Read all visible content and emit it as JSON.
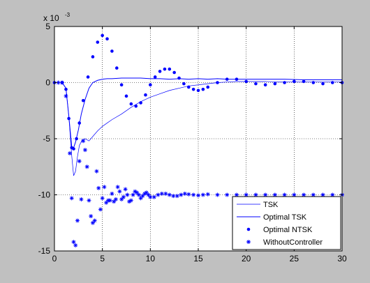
{
  "chart_data": {
    "type": "line",
    "title": "",
    "xlabel": "",
    "ylabel": "",
    "xlim": [
      0,
      30
    ],
    "ylim": [
      -15,
      5
    ],
    "y_multiplier_label": "x 10",
    "y_multiplier_exponent": "-3",
    "xticks": [
      "0",
      "5",
      "10",
      "15",
      "20",
      "25",
      "30"
    ],
    "yticks": [
      "5",
      "0",
      "-5",
      "-10",
      "-15"
    ],
    "grid": true,
    "legend_position": "bottom-right",
    "series": [
      {
        "name": "TSK",
        "style": "thin-line",
        "x": [
          0,
          0.8,
          1.2,
          1.5,
          1.8,
          2.0,
          2.2,
          2.4,
          2.6,
          2.9,
          3.2,
          3.6,
          4.0,
          4.5,
          5.0,
          5.5,
          6.0,
          7.0,
          8.0,
          9.0,
          10.0,
          11.0,
          12.0,
          13.0,
          14.0,
          15.0,
          16.0,
          17.0,
          18.0,
          19.0,
          20.0,
          22.0,
          24.0,
          26.0,
          28.0,
          30.0
        ],
        "y": [
          0,
          0,
          -0.5,
          -3.0,
          -6.5,
          -8.3,
          -7.9,
          -6.6,
          -5.6,
          -5.1,
          -5.0,
          -5.2,
          -4.8,
          -4.3,
          -3.9,
          -3.6,
          -3.3,
          -2.8,
          -2.2,
          -1.7,
          -1.3,
          -1.0,
          -0.7,
          -0.5,
          -0.3,
          -0.2,
          -0.1,
          0.0,
          0.05,
          0.1,
          0.1,
          0.1,
          0.05,
          0.05,
          0.05,
          0.05
        ]
      },
      {
        "name": "Optimal TSK",
        "style": "line",
        "x": [
          0,
          0.8,
          1.2,
          1.5,
          1.8,
          2.0,
          2.2,
          2.5,
          2.8,
          3.2,
          3.6,
          4.0,
          4.5,
          5.0,
          5.5,
          6.0,
          7.0,
          8.0,
          9.0,
          10.0,
          11.0,
          12.0,
          13.0,
          14.0,
          15.0,
          16.0,
          17.0,
          18.0,
          19.0,
          20.0,
          22.0,
          24.0,
          26.0,
          28.0,
          30.0
        ],
        "y": [
          0,
          0,
          -0.5,
          -3.0,
          -5.7,
          -5.8,
          -5.3,
          -4.2,
          -2.8,
          -1.5,
          -0.5,
          0.0,
          0.2,
          0.3,
          0.35,
          0.35,
          0.4,
          0.4,
          0.4,
          0.35,
          0.35,
          0.3,
          0.35,
          0.3,
          0.35,
          0.3,
          0.35,
          0.3,
          0.3,
          0.3,
          0.3,
          0.3,
          0.25,
          0.25,
          0.25
        ]
      },
      {
        "name": "Optimal NTSK",
        "style": "dots",
        "x": [
          0,
          0.8,
          1.2,
          1.5,
          1.8,
          2.0,
          2.3,
          2.6,
          3.0,
          3.5,
          4.0,
          4.5,
          5.0,
          5.5,
          6.0,
          6.5,
          7.0,
          7.5,
          8.0,
          8.5,
          9.0,
          9.5,
          10.0,
          10.5,
          11.0,
          11.5,
          12.0,
          12.5,
          13.0,
          13.5,
          14.0,
          14.5,
          15.0,
          15.5,
          16.0,
          17.0,
          18.0,
          19.0,
          20.0,
          21.0,
          22.0,
          23.0,
          24.0,
          25.0,
          26.0,
          27.0,
          28.0,
          29.0,
          30.0
        ],
        "y": [
          0,
          0,
          -0.6,
          -3.2,
          -5.8,
          -5.9,
          -5.0,
          -3.6,
          -1.6,
          0.5,
          2.3,
          3.6,
          4.2,
          3.9,
          2.8,
          1.3,
          -0.2,
          -1.2,
          -1.9,
          -2.1,
          -1.8,
          -1.1,
          -0.2,
          0.5,
          1.0,
          1.2,
          1.2,
          0.9,
          0.4,
          -0.1,
          -0.4,
          -0.6,
          -0.7,
          -0.6,
          -0.4,
          0.0,
          0.3,
          0.3,
          0.1,
          -0.1,
          -0.2,
          -0.1,
          0.0,
          0.1,
          0.1,
          0.0,
          -0.1,
          0.0,
          0.0
        ]
      },
      {
        "name": "WithoutController",
        "style": "stars",
        "x": [
          0.4,
          0.8,
          1.2,
          1.6,
          1.8,
          2.0,
          2.2,
          2.4,
          2.6,
          2.8,
          3.0,
          3.2,
          3.4,
          3.6,
          3.8,
          4.0,
          4.2,
          4.4,
          4.6,
          4.8,
          5.0,
          5.2,
          5.4,
          5.6,
          5.8,
          6.0,
          6.2,
          6.4,
          6.6,
          6.8,
          7.0,
          7.2,
          7.4,
          7.6,
          7.8,
          8.0,
          8.2,
          8.4,
          8.6,
          8.8,
          9.0,
          9.2,
          9.4,
          9.6,
          9.8,
          10.0,
          10.4,
          10.8,
          11.2,
          11.6,
          12.0,
          12.4,
          12.8,
          13.2,
          13.6,
          14.0,
          14.5,
          15.0,
          15.5,
          16.0,
          17.0,
          18.0,
          19.0,
          20.0,
          21.0,
          22.0,
          23.0,
          24.0,
          25.0,
          26.0,
          27.0,
          28.0,
          29.0,
          30.0
        ],
        "y": [
          0,
          0,
          -1.2,
          -6.3,
          -10.3,
          -14.2,
          -14.5,
          -12.3,
          -7.0,
          -10.4,
          -5.2,
          -6.0,
          -7.5,
          -10.5,
          -11.9,
          -12.5,
          -12.3,
          -7.9,
          -9.4,
          -11.3,
          -10.3,
          -9.3,
          -10.7,
          -10.5,
          -10.5,
          -9.9,
          -10.6,
          -10.4,
          -9.3,
          -9.7,
          -10.4,
          -10.2,
          -9.5,
          -10.0,
          -10.6,
          -10.5,
          -10.0,
          -9.7,
          -9.8,
          -10.0,
          -10.3,
          -10.1,
          -9.9,
          -9.8,
          -10.0,
          -10.2,
          -10.2,
          -10.0,
          -9.9,
          -9.9,
          -10.0,
          -10.1,
          -10.1,
          -10.0,
          -9.9,
          -9.95,
          -10.0,
          -10.05,
          -10.0,
          -9.95,
          -10.0,
          -10.0,
          -10.0,
          -10.0,
          -10.0,
          -10.0,
          -10.0,
          -10.0,
          -10.0,
          -10.0,
          -10.0,
          -10.0,
          -10.0,
          -10.0
        ]
      }
    ]
  },
  "colors": {
    "figure_background": "#c0c0c0",
    "axes_background": "#ffffff",
    "series": "#0000ff"
  }
}
